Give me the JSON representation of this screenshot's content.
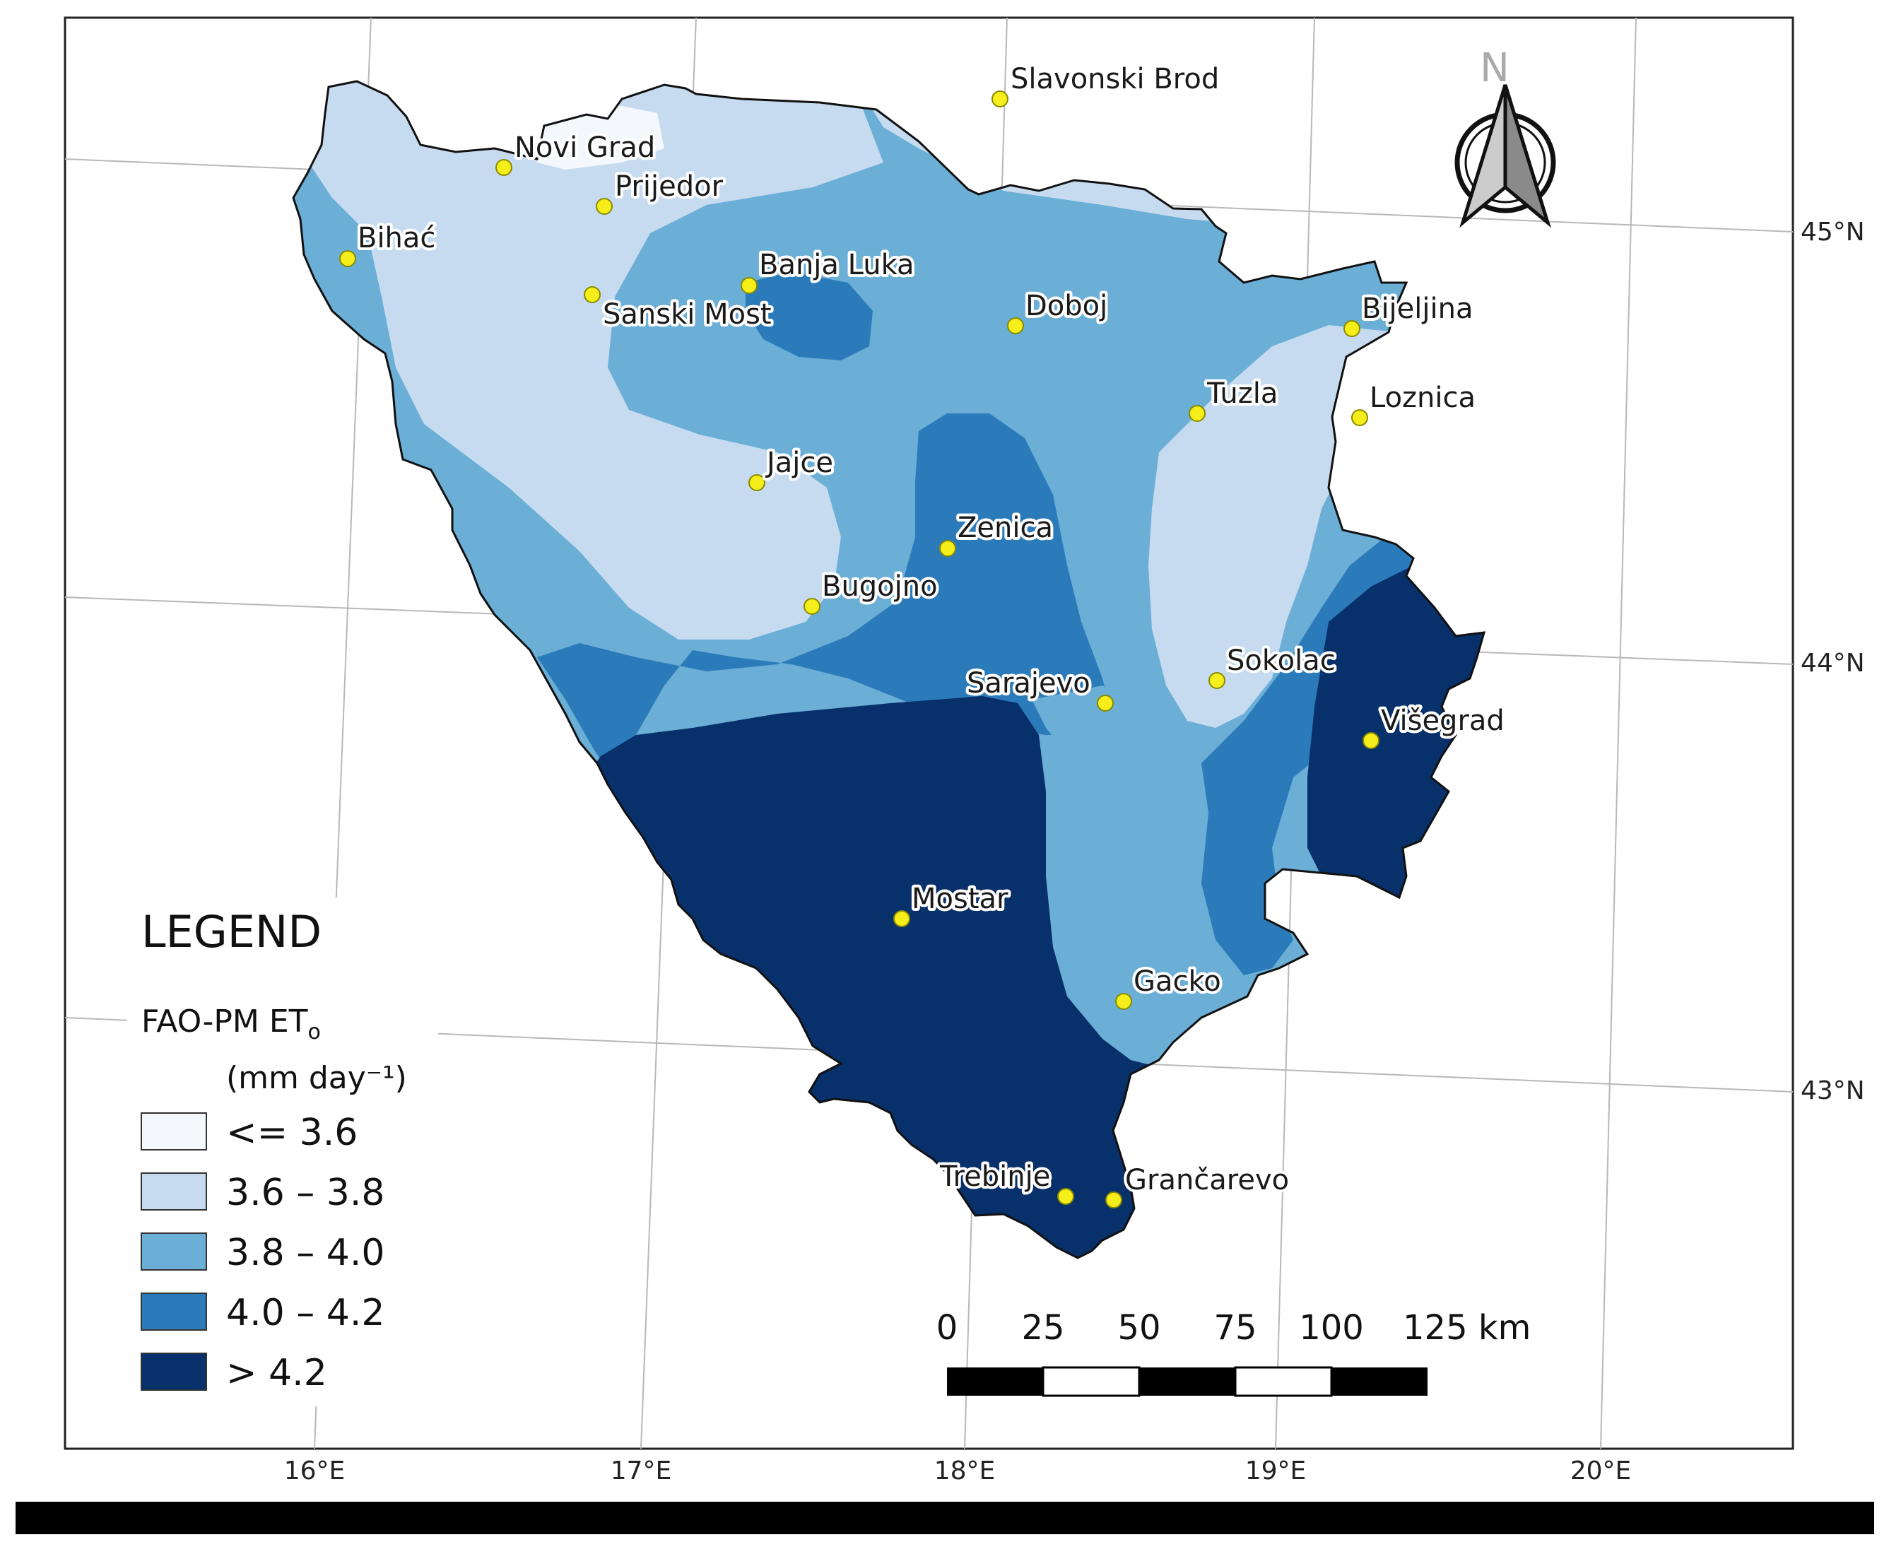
{
  "map": {
    "legend": {
      "title": "LEGEND",
      "variable": "FAO-PM ET",
      "variable_sub": "o",
      "units": "(mm day⁻¹)",
      "classes": [
        {
          "label": "<= 3.6",
          "color": "#f4f8fd"
        },
        {
          "label": "3.6 – 3.8",
          "color": "#c6dbef"
        },
        {
          "label": "3.8 – 4.0",
          "color": "#6baed6"
        },
        {
          "label": "4.0 – 4.2",
          "color": "#2b7bba"
        },
        {
          "label": "> 4.2",
          "color": "#08306b"
        }
      ]
    },
    "north_arrow": {
      "label": "N"
    },
    "scale_bar": {
      "labels": [
        "0",
        "25",
        "50",
        "75",
        "100",
        "125 km"
      ]
    },
    "longitude_labels": [
      "16°E",
      "17°E",
      "18°E",
      "19°E",
      "20°E"
    ],
    "latitude_labels": [
      "45°N",
      "44°N",
      "43°N"
    ],
    "cities": [
      {
        "name": "Slavonski Brod",
        "icon": "city-marker"
      },
      {
        "name": "Novi Grad",
        "icon": "city-marker"
      },
      {
        "name": "Prijedor",
        "icon": "city-marker"
      },
      {
        "name": "Bihać",
        "icon": "city-marker"
      },
      {
        "name": "Banja Luka",
        "icon": "city-marker"
      },
      {
        "name": "Sanski Most",
        "icon": "city-marker"
      },
      {
        "name": "Doboj",
        "icon": "city-marker"
      },
      {
        "name": "Bijeljina",
        "icon": "city-marker"
      },
      {
        "name": "Tuzla",
        "icon": "city-marker"
      },
      {
        "name": "Loznica",
        "icon": "city-marker"
      },
      {
        "name": "Jajce",
        "icon": "city-marker"
      },
      {
        "name": "Zenica",
        "icon": "city-marker"
      },
      {
        "name": "Bugojno",
        "icon": "city-marker"
      },
      {
        "name": "Sokolac",
        "icon": "city-marker"
      },
      {
        "name": "Sarajevo",
        "icon": "city-marker"
      },
      {
        "name": "Višegrad",
        "icon": "city-marker"
      },
      {
        "name": "Mostar",
        "icon": "city-marker"
      },
      {
        "name": "Gacko",
        "icon": "city-marker"
      },
      {
        "name": "Trebinje",
        "icon": "city-marker"
      },
      {
        "name": "Grančarevo",
        "icon": "city-marker"
      }
    ],
    "colors": {
      "border": "#111111",
      "graticule": "#b8b8b8",
      "marker_fill": "#f5ee1b",
      "marker_stroke": "#8a8a00"
    }
  }
}
